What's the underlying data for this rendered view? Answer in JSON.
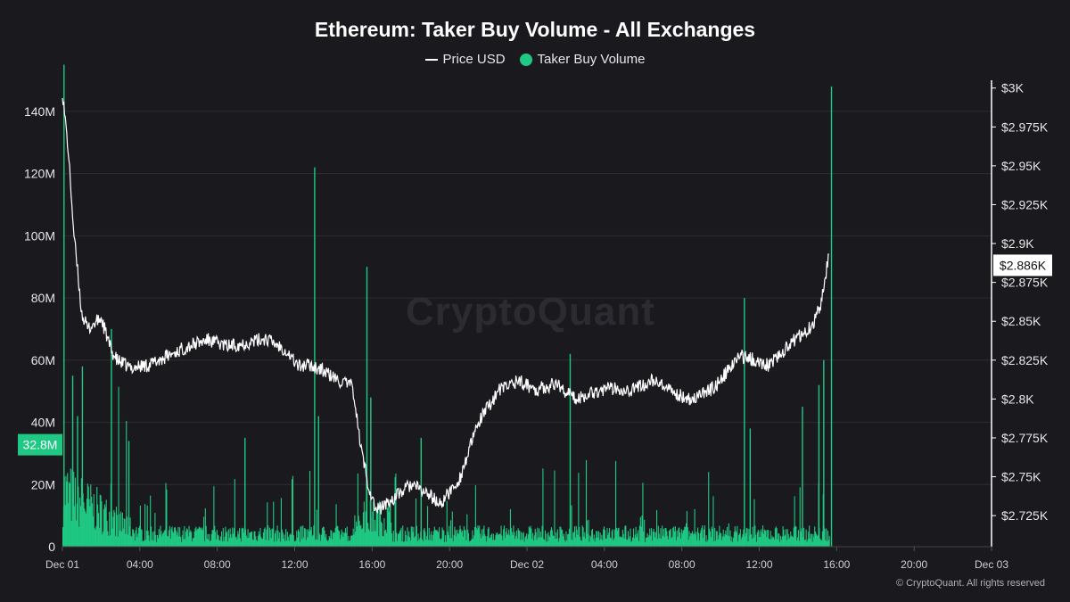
{
  "title": "Ethereum: Taker Buy Volume - All Exchanges",
  "legend": {
    "price_label": "Price USD",
    "volume_label": "Taker Buy Volume"
  },
  "watermark": "CryptoQuant",
  "footer": "© CryptoQuant. All rights reserved",
  "colors": {
    "background": "#1a1a1e",
    "price": "#ffffff",
    "volume": "#1fc983",
    "grid": "#2c2c33"
  },
  "chart_data": {
    "type": "bar+line",
    "title": "Ethereum: Taker Buy Volume - All Exchanges",
    "x_ticks": [
      "Dec 01",
      "04:00",
      "08:00",
      "12:00",
      "16:00",
      "20:00",
      "Dec 02",
      "04:00",
      "08:00",
      "12:00",
      "16:00",
      "20:00",
      "Dec 03"
    ],
    "x_range_hours": [
      0,
      48
    ],
    "left_axis": {
      "ticks": [
        "0",
        "20M",
        "40M",
        "60M",
        "80M",
        "100M",
        "120M",
        "140M"
      ],
      "range": [
        0,
        150000000
      ],
      "current_value_label": "32.8M",
      "current_value": 32800000
    },
    "right_axis": {
      "ticks": [
        "$2.725K",
        "$2.75K",
        "$2.775K",
        "$2.8K",
        "$2.825K",
        "$2.85K",
        "$2.875K",
        "$2.9K",
        "$2.925K",
        "$2.95K",
        "$2.975K",
        "$3K"
      ],
      "range": [
        2705,
        3005
      ],
      "current_value_label": "$2.886K",
      "current_value": 2886
    },
    "series": [
      {
        "name": "Price USD",
        "type": "line",
        "hours": [
          0,
          0.3,
          0.6,
          1.0,
          1.3,
          1.6,
          2.0,
          2.5,
          2.8,
          3.5,
          4.5,
          5.5,
          6.5,
          7.5,
          8.5,
          9.5,
          10.5,
          11.5,
          12.2,
          12.8,
          13.5,
          14.2,
          15.0,
          15.4,
          15.8,
          16.2,
          17.0,
          18.0,
          19.0,
          19.5,
          20.5,
          21.5,
          22.5,
          23.5,
          24.5,
          25.5,
          26.5,
          27.5,
          28.5,
          29.5,
          30.5,
          31.5,
          32.5,
          33.5,
          34.0,
          35.0,
          36.0,
          36.5,
          37.5,
          38.0,
          38.8,
          39.2,
          39.6
        ],
        "values": [
          2998,
          2960,
          2905,
          2855,
          2845,
          2848,
          2852,
          2832,
          2825,
          2820,
          2822,
          2828,
          2834,
          2838,
          2834,
          2836,
          2839,
          2832,
          2821,
          2822,
          2818,
          2812,
          2808,
          2770,
          2745,
          2728,
          2735,
          2745,
          2738,
          2732,
          2748,
          2785,
          2805,
          2812,
          2806,
          2810,
          2800,
          2805,
          2807,
          2806,
          2812,
          2804,
          2800,
          2806,
          2812,
          2828,
          2824,
          2822,
          2834,
          2840,
          2848,
          2862,
          2893
        ]
      },
      {
        "name": "Taker Buy Volume",
        "type": "bar",
        "spikes": [
          {
            "hour": 0.05,
            "value": 155000000
          },
          {
            "hour": 0.5,
            "value": 55000000
          },
          {
            "hour": 0.75,
            "value": 42000000
          },
          {
            "hour": 1.0,
            "value": 58000000
          },
          {
            "hour": 2.5,
            "value": 70000000
          },
          {
            "hour": 3.4,
            "value": 34000000
          },
          {
            "hour": 9.4,
            "value": 35000000
          },
          {
            "hour": 13.0,
            "value": 122000000
          },
          {
            "hour": 13.2,
            "value": 42000000
          },
          {
            "hour": 15.7,
            "value": 90000000
          },
          {
            "hour": 15.9,
            "value": 48000000
          },
          {
            "hour": 18.5,
            "value": 35000000
          },
          {
            "hour": 26.2,
            "value": 62000000
          },
          {
            "hour": 35.2,
            "value": 80000000
          },
          {
            "hour": 35.5,
            "value": 38000000
          },
          {
            "hour": 38.2,
            "value": 45000000
          },
          {
            "hour": 39.05,
            "value": 52000000
          },
          {
            "hour": 39.3,
            "value": 60000000
          },
          {
            "hour": 39.7,
            "value": 148000000
          }
        ],
        "baseline_typical": 6000000
      }
    ],
    "legend_position": "top-center",
    "grid": true
  }
}
